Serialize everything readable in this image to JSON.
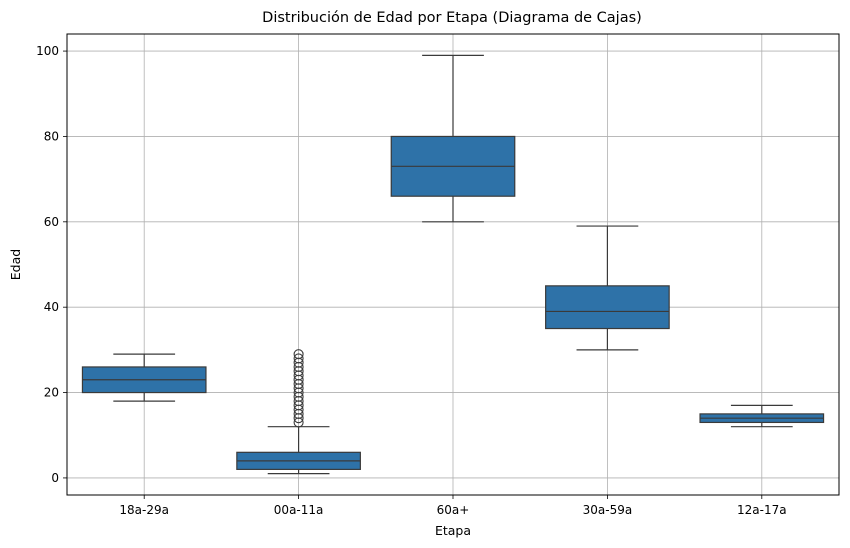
{
  "chart_data": {
    "type": "box",
    "title": "Distribución de Edad por Etapa (Diagrama de Cajas)",
    "xlabel": "Etapa",
    "ylabel": "Edad",
    "ylim": [
      -4,
      104
    ],
    "yticks": [
      0,
      20,
      40,
      60,
      80,
      100
    ],
    "grid": true,
    "legend": "none",
    "box_color": "#2e72a8",
    "edge_color": "#3a3a3a",
    "grid_color": "#b0b0b0",
    "categories": [
      "18a-29a",
      "00a-11a",
      "60a+",
      "30a-59a",
      "12a-17a"
    ],
    "boxes": [
      {
        "category": "18a-29a",
        "whisker_low": 18,
        "q1": 20,
        "median": 23,
        "q3": 26,
        "whisker_high": 29,
        "outliers": []
      },
      {
        "category": "00a-11a",
        "whisker_low": 1,
        "q1": 2,
        "median": 4,
        "q3": 6,
        "whisker_high": 12,
        "outliers": [
          13,
          14,
          15,
          16,
          17,
          18,
          19,
          20,
          21,
          22,
          23,
          24,
          25,
          26,
          27,
          28,
          29
        ]
      },
      {
        "category": "60a+",
        "whisker_low": 60,
        "q1": 66,
        "median": 73,
        "q3": 80,
        "whisker_high": 99,
        "outliers": []
      },
      {
        "category": "30a-59a",
        "whisker_low": 30,
        "q1": 35,
        "median": 39,
        "q3": 45,
        "whisker_high": 59,
        "outliers": []
      },
      {
        "category": "12a-17a",
        "whisker_low": 12,
        "q1": 13,
        "median": 14,
        "q3": 15,
        "whisker_high": 17,
        "outliers": []
      }
    ]
  }
}
